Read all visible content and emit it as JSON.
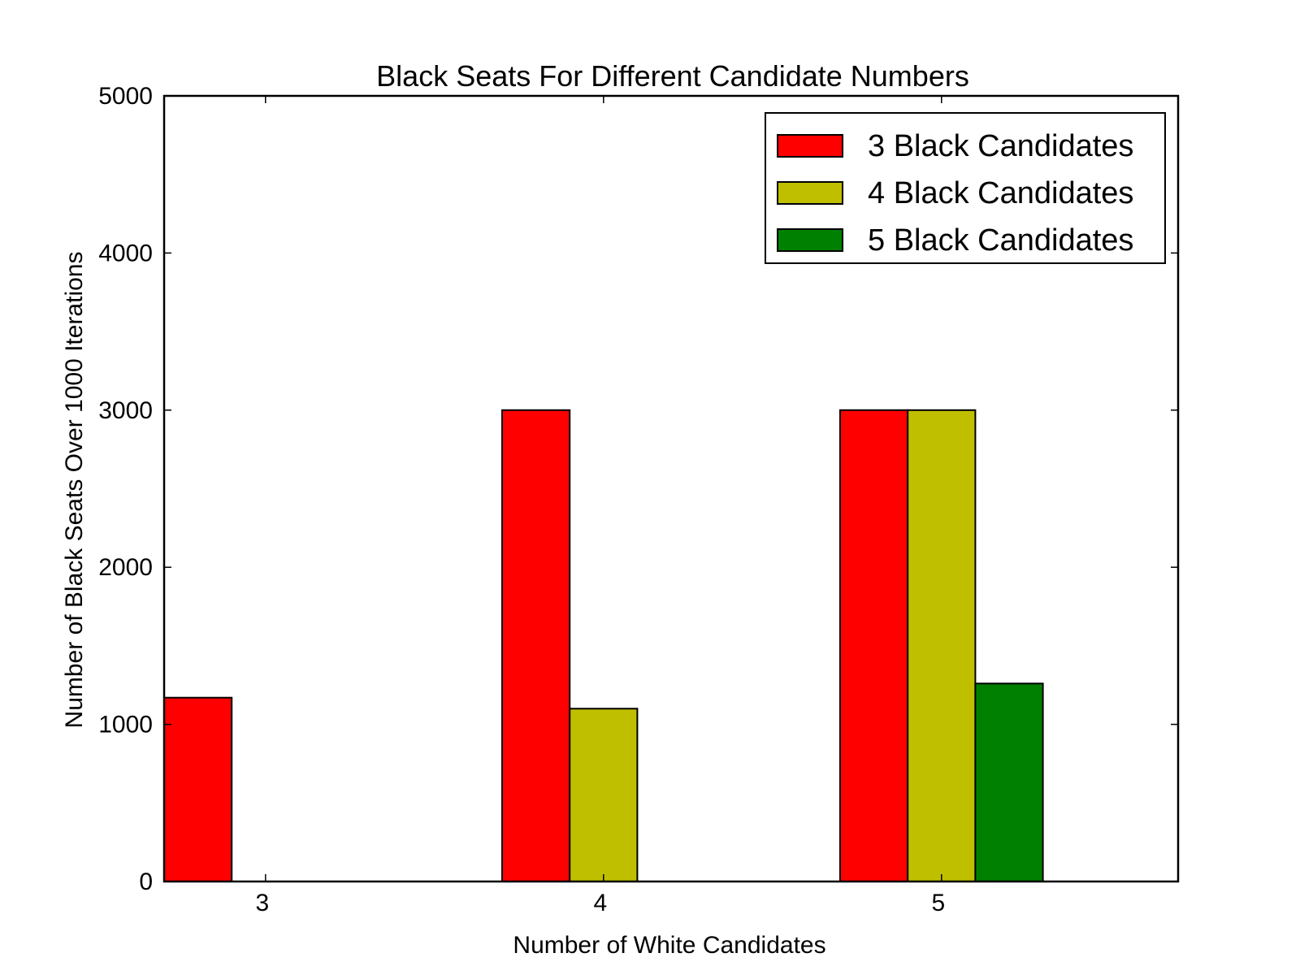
{
  "chart_data": {
    "type": "bar",
    "title": "Black Seats For Different Candidate Numbers",
    "xlabel": "Number of White Candidates",
    "ylabel": "Number of Black Seats Over 1000 Iterations",
    "categories": [
      "3",
      "4",
      "5"
    ],
    "ylim": [
      0,
      5000
    ],
    "yticks": [
      0,
      1000,
      2000,
      3000,
      4000,
      5000
    ],
    "ytick_labels": [
      "0",
      "1000",
      "2000",
      "3000",
      "4000",
      "5000"
    ],
    "grid": false,
    "legend_position": "top-right",
    "series": [
      {
        "name": "3 Black Candidates",
        "color": "#ff0000",
        "values": [
          1170,
          3000,
          3000
        ]
      },
      {
        "name": "4 Black Candidates",
        "color": "#bfbf00",
        "values": [
          0,
          1100,
          3000
        ]
      },
      {
        "name": "5 Black Candidates",
        "color": "#008000",
        "values": [
          0,
          0,
          1260
        ]
      }
    ]
  }
}
